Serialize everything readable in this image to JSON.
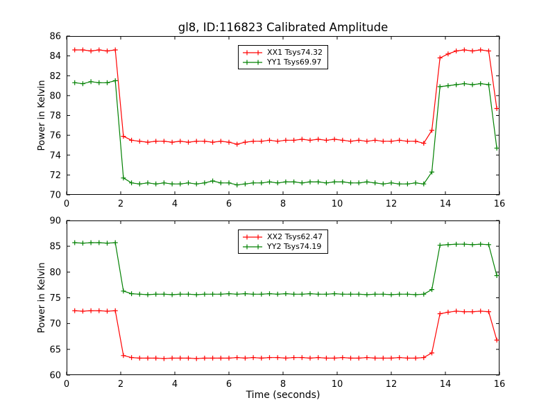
{
  "figure": {
    "title": "gl8, ID:116823 Calibrated Amplitude",
    "background": "#ffffff",
    "frame_color": "#000000"
  },
  "chart_data": [
    {
      "type": "line",
      "title": "gl8, ID:116823 Calibrated Amplitude",
      "xlabel": "",
      "ylabel": "Power in Kelvin",
      "xlim": [
        0,
        16
      ],
      "ylim": [
        70,
        86
      ],
      "xticks": [
        0,
        2,
        4,
        6,
        8,
        10,
        12,
        14,
        16
      ],
      "yticks": [
        70,
        72,
        74,
        76,
        78,
        80,
        82,
        84,
        86
      ],
      "grid": false,
      "legend_position": "upper center",
      "marker": "+",
      "x": [
        0.3,
        0.6,
        0.9,
        1.2,
        1.5,
        1.8,
        2.1,
        2.4,
        2.7,
        3.0,
        3.3,
        3.6,
        3.9,
        4.2,
        4.5,
        4.8,
        5.1,
        5.4,
        5.7,
        6.0,
        6.3,
        6.6,
        6.9,
        7.2,
        7.5,
        7.8,
        8.1,
        8.4,
        8.7,
        9.0,
        9.3,
        9.6,
        9.9,
        10.2,
        10.5,
        10.8,
        11.1,
        11.4,
        11.7,
        12.0,
        12.3,
        12.6,
        12.9,
        13.2,
        13.5,
        13.8,
        14.1,
        14.4,
        14.7,
        15.0,
        15.3,
        15.6,
        15.9
      ],
      "series": [
        {
          "name": "XX1 Tsys74.32",
          "color": "#ff0000",
          "values": [
            84.6,
            84.6,
            84.5,
            84.6,
            84.5,
            84.6,
            75.9,
            75.5,
            75.4,
            75.3,
            75.4,
            75.4,
            75.3,
            75.4,
            75.3,
            75.4,
            75.4,
            75.3,
            75.4,
            75.3,
            75.1,
            75.3,
            75.4,
            75.4,
            75.5,
            75.4,
            75.5,
            75.5,
            75.6,
            75.5,
            75.6,
            75.5,
            75.6,
            75.5,
            75.4,
            75.5,
            75.4,
            75.5,
            75.4,
            75.4,
            75.5,
            75.4,
            75.4,
            75.2,
            76.5,
            83.8,
            84.2,
            84.5,
            84.6,
            84.5,
            84.6,
            84.5,
            78.7
          ]
        },
        {
          "name": "YY1 Tsys69.97",
          "color": "#008000",
          "values": [
            81.3,
            81.2,
            81.4,
            81.3,
            81.3,
            81.5,
            71.7,
            71.2,
            71.1,
            71.2,
            71.1,
            71.2,
            71.1,
            71.1,
            71.2,
            71.1,
            71.2,
            71.4,
            71.2,
            71.2,
            71.0,
            71.1,
            71.2,
            71.2,
            71.3,
            71.2,
            71.3,
            71.3,
            71.2,
            71.3,
            71.3,
            71.2,
            71.3,
            71.3,
            71.2,
            71.2,
            71.3,
            71.2,
            71.1,
            71.2,
            71.1,
            71.1,
            71.2,
            71.1,
            72.3,
            80.9,
            81.0,
            81.1,
            81.2,
            81.1,
            81.2,
            81.1,
            74.7
          ]
        }
      ]
    },
    {
      "type": "line",
      "title": "",
      "xlabel": "Time (seconds)",
      "ylabel": "Power in Kelvin",
      "xlim": [
        0,
        16
      ],
      "ylim": [
        60,
        90
      ],
      "xticks": [
        0,
        2,
        4,
        6,
        8,
        10,
        12,
        14,
        16
      ],
      "yticks": [
        60,
        65,
        70,
        75,
        80,
        85,
        90
      ],
      "grid": false,
      "legend_position": "upper center",
      "marker": "+",
      "x": [
        0.3,
        0.6,
        0.9,
        1.2,
        1.5,
        1.8,
        2.1,
        2.4,
        2.7,
        3.0,
        3.3,
        3.6,
        3.9,
        4.2,
        4.5,
        4.8,
        5.1,
        5.4,
        5.7,
        6.0,
        6.3,
        6.6,
        6.9,
        7.2,
        7.5,
        7.8,
        8.1,
        8.4,
        8.7,
        9.0,
        9.3,
        9.6,
        9.9,
        10.2,
        10.5,
        10.8,
        11.1,
        11.4,
        11.7,
        12.0,
        12.3,
        12.6,
        12.9,
        13.2,
        13.5,
        13.8,
        14.1,
        14.4,
        14.7,
        15.0,
        15.3,
        15.6,
        15.9
      ],
      "series": [
        {
          "name": "XX2 Tsys62.47",
          "color": "#ff0000",
          "values": [
            72.5,
            72.4,
            72.5,
            72.5,
            72.4,
            72.5,
            63.8,
            63.4,
            63.3,
            63.3,
            63.3,
            63.2,
            63.3,
            63.3,
            63.3,
            63.2,
            63.3,
            63.3,
            63.3,
            63.3,
            63.4,
            63.3,
            63.4,
            63.3,
            63.4,
            63.4,
            63.3,
            63.4,
            63.4,
            63.3,
            63.4,
            63.3,
            63.3,
            63.4,
            63.3,
            63.3,
            63.4,
            63.3,
            63.3,
            63.3,
            63.4,
            63.3,
            63.3,
            63.4,
            64.3,
            71.9,
            72.2,
            72.4,
            72.3,
            72.3,
            72.4,
            72.3,
            66.8
          ]
        },
        {
          "name": "YY2 Tsys74.19",
          "color": "#008000",
          "values": [
            85.7,
            85.6,
            85.7,
            85.7,
            85.6,
            85.7,
            76.3,
            75.8,
            75.7,
            75.6,
            75.7,
            75.7,
            75.6,
            75.7,
            75.7,
            75.6,
            75.7,
            75.7,
            75.7,
            75.8,
            75.7,
            75.8,
            75.7,
            75.7,
            75.8,
            75.7,
            75.8,
            75.7,
            75.7,
            75.8,
            75.7,
            75.7,
            75.8,
            75.7,
            75.7,
            75.7,
            75.6,
            75.7,
            75.7,
            75.6,
            75.7,
            75.7,
            75.6,
            75.7,
            76.6,
            85.2,
            85.3,
            85.4,
            85.4,
            85.3,
            85.4,
            85.3,
            79.3
          ]
        }
      ]
    }
  ]
}
